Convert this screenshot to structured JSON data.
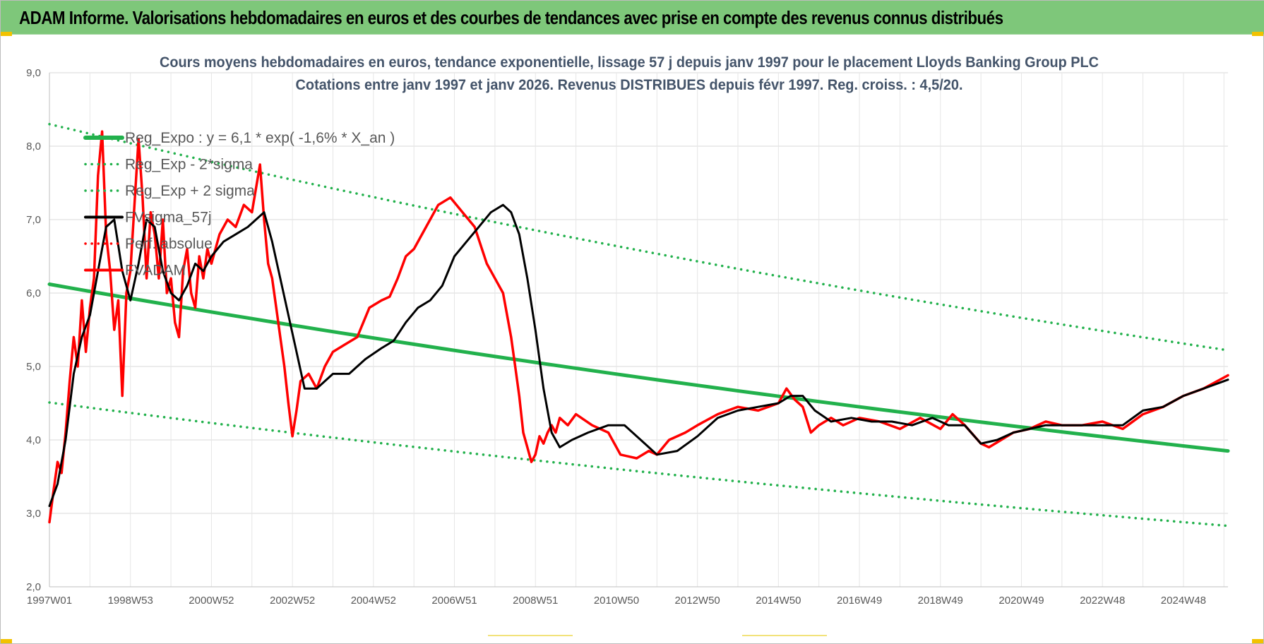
{
  "banner_title": "ADAM Informe. Valorisations hebdomadaires en euros et des courbes de tendances avec prise en compte des revenus connus distribués",
  "chart_data": {
    "type": "line",
    "title": "Cours moyens hebdomadaires en euros, tendance exponentielle, lissage 57 j depuis janv 1997 pour le placement Lloyds Banking Group PLC",
    "subtitle": "Cotations entre janv 1997 et janv 2026. Revenus DISTRIBUES depuis févr 1997. Reg. croiss. : 4,5/20.",
    "xlabel": "",
    "ylabel": "",
    "xlim": [
      1997.0,
      2026.1
    ],
    "ylim": [
      2.0,
      9.0
    ],
    "y_ticks": [
      "2,0",
      "3,0",
      "4,0",
      "5,0",
      "6,0",
      "7,0",
      "8,0",
      "9,0"
    ],
    "x_ticks": [
      {
        "label": "1997W01",
        "x": 1997.0
      },
      {
        "label": "1998W53",
        "x": 1999.0
      },
      {
        "label": "2000W52",
        "x": 2001.0
      },
      {
        "label": "2002W52",
        "x": 2003.0
      },
      {
        "label": "2004W52",
        "x": 2005.0
      },
      {
        "label": "2006W51",
        "x": 2007.0
      },
      {
        "label": "2008W51",
        "x": 2009.0
      },
      {
        "label": "2010W50",
        "x": 2011.0
      },
      {
        "label": "2012W50",
        "x": 2013.0
      },
      {
        "label": "2014W50",
        "x": 2015.0
      },
      {
        "label": "2016W49",
        "x": 2017.0
      },
      {
        "label": "2018W49",
        "x": 2019.0
      },
      {
        "label": "2020W49",
        "x": 2021.0
      },
      {
        "label": "2022W48",
        "x": 2023.0
      },
      {
        "label": "2024W48",
        "x": 2025.0
      }
    ],
    "grid": true,
    "legend_position": "top-left",
    "series": [
      {
        "name": "Reg_Expo : y = 6,1 * exp( -1,6% *  X_an )",
        "style": "solid",
        "color": "#22b14c",
        "x": [
          1997.0,
          2026.1
        ],
        "values": [
          6.12,
          3.85
        ]
      },
      {
        "name": "Reg_Exp - 2*sigma",
        "style": "dotted",
        "color": "#22b14c",
        "x": [
          1997.0,
          2026.1
        ],
        "values": [
          4.51,
          2.83
        ]
      },
      {
        "name": "Reg_Exp + 2 sigma",
        "style": "dotted",
        "color": "#22b14c",
        "x": [
          1997.0,
          2026.1
        ],
        "values": [
          8.3,
          5.22
        ]
      },
      {
        "name": "FVsigma_57j",
        "style": "solid",
        "color": "#000000",
        "x": [
          1997.0,
          1997.2,
          1997.4,
          1997.6,
          1997.8,
          1998.0,
          1998.2,
          1998.4,
          1998.6,
          1998.8,
          1999.0,
          1999.2,
          1999.4,
          1999.6,
          1999.8,
          2000.0,
          2000.2,
          2000.4,
          2000.6,
          2000.8,
          2001.0,
          2001.3,
          2001.6,
          2001.9,
          2002.1,
          2002.3,
          2002.5,
          2002.7,
          2002.9,
          2003.1,
          2003.3,
          2003.6,
          2004.0,
          2004.4,
          2004.8,
          2005.2,
          2005.5,
          2005.8,
          2006.1,
          2006.4,
          2006.7,
          2007.0,
          2007.3,
          2007.6,
          2007.9,
          2008.2,
          2008.4,
          2008.6,
          2008.8,
          2009.0,
          2009.2,
          2009.4,
          2009.6,
          2009.9,
          2010.3,
          2010.8,
          2011.2,
          2011.6,
          2012.0,
          2012.5,
          2013.0,
          2013.5,
          2014.0,
          2014.5,
          2015.0,
          2015.3,
          2015.6,
          2015.9,
          2016.3,
          2016.8,
          2017.3,
          2017.8,
          2018.3,
          2018.8,
          2019.2,
          2019.6,
          2020.0,
          2020.4,
          2020.8,
          2021.2,
          2021.6,
          2022.0,
          2022.5,
          2023.0,
          2023.5,
          2024.0,
          2024.5,
          2025.0,
          2025.5,
          2026.1
        ],
        "values": [
          3.1,
          3.4,
          4.0,
          4.9,
          5.4,
          5.7,
          6.3,
          6.9,
          7.0,
          6.3,
          5.9,
          6.4,
          7.0,
          6.9,
          6.3,
          6.0,
          5.9,
          6.1,
          6.4,
          6.3,
          6.5,
          6.7,
          6.8,
          6.9,
          7.0,
          7.1,
          6.7,
          6.2,
          5.7,
          5.2,
          4.7,
          4.7,
          4.9,
          4.9,
          5.1,
          5.25,
          5.35,
          5.6,
          5.8,
          5.9,
          6.1,
          6.5,
          6.7,
          6.9,
          7.1,
          7.2,
          7.1,
          6.8,
          6.2,
          5.5,
          4.7,
          4.1,
          3.9,
          4.0,
          4.1,
          4.2,
          4.2,
          4.0,
          3.8,
          3.85,
          4.05,
          4.3,
          4.4,
          4.45,
          4.5,
          4.6,
          4.6,
          4.4,
          4.25,
          4.3,
          4.25,
          4.25,
          4.2,
          4.3,
          4.2,
          4.2,
          3.95,
          4.0,
          4.1,
          4.15,
          4.2,
          4.2,
          4.2,
          4.2,
          4.2,
          4.4,
          4.45,
          4.6,
          4.7,
          4.82
        ]
      },
      {
        "name": "Perf. absolue",
        "style": "dotted",
        "color": "#ff0000",
        "x": [],
        "values": []
      },
      {
        "name": "FVADAM",
        "style": "solid",
        "color": "#ff0000",
        "x": [
          1997.0,
          1997.1,
          1997.2,
          1997.3,
          1997.4,
          1997.5,
          1997.6,
          1997.7,
          1997.8,
          1997.9,
          1998.0,
          1998.1,
          1998.2,
          1998.3,
          1998.4,
          1998.5,
          1998.6,
          1998.7,
          1998.8,
          1998.9,
          1999.0,
          1999.1,
          1999.2,
          1999.3,
          1999.4,
          1999.5,
          1999.6,
          1999.7,
          1999.8,
          1999.9,
          2000.0,
          2000.1,
          2000.2,
          2000.3,
          2000.4,
          2000.5,
          2000.6,
          2000.7,
          2000.8,
          2000.9,
          2001.0,
          2001.2,
          2001.4,
          2001.6,
          2001.8,
          2002.0,
          2002.2,
          2002.3,
          2002.4,
          2002.5,
          2002.6,
          2002.7,
          2002.8,
          2002.9,
          2003.0,
          2003.1,
          2003.2,
          2003.4,
          2003.6,
          2003.8,
          2004.0,
          2004.3,
          2004.6,
          2004.9,
          2005.2,
          2005.4,
          2005.6,
          2005.8,
          2006.0,
          2006.3,
          2006.6,
          2006.9,
          2007.2,
          2007.5,
          2007.8,
          2008.0,
          2008.2,
          2008.4,
          2008.5,
          2008.6,
          2008.7,
          2008.8,
          2008.9,
          2009.0,
          2009.1,
          2009.2,
          2009.3,
          2009.4,
          2009.5,
          2009.6,
          2009.8,
          2010.0,
          2010.4,
          2010.8,
          2011.1,
          2011.5,
          2011.8,
          2012.0,
          2012.3,
          2012.7,
          2013.0,
          2013.5,
          2014.0,
          2014.5,
          2015.0,
          2015.2,
          2015.4,
          2015.6,
          2015.8,
          2016.0,
          2016.3,
          2016.6,
          2017.0,
          2017.5,
          2018.0,
          2018.5,
          2019.0,
          2019.3,
          2019.6,
          2020.0,
          2020.2,
          2020.5,
          2020.8,
          2021.2,
          2021.6,
          2022.0,
          2022.5,
          2023.0,
          2023.5,
          2024.0,
          2024.5,
          2025.0,
          2025.5,
          2026.1
        ],
        "values": [
          2.88,
          3.3,
          3.7,
          3.55,
          4.1,
          4.8,
          5.4,
          5.0,
          5.9,
          5.2,
          5.8,
          6.2,
          7.6,
          8.2,
          6.8,
          6.3,
          5.5,
          5.9,
          4.6,
          6.0,
          6.3,
          7.2,
          8.1,
          7.3,
          6.2,
          7.1,
          6.8,
          6.2,
          7.0,
          6.0,
          6.2,
          5.6,
          5.4,
          6.3,
          6.6,
          6.0,
          5.8,
          6.5,
          6.2,
          6.6,
          6.4,
          6.8,
          7.0,
          6.9,
          7.2,
          7.1,
          7.75,
          7.0,
          6.4,
          6.2,
          5.8,
          5.4,
          5.0,
          4.5,
          4.05,
          4.4,
          4.8,
          4.9,
          4.7,
          5.0,
          5.2,
          5.3,
          5.4,
          5.8,
          5.9,
          5.95,
          6.2,
          6.5,
          6.6,
          6.9,
          7.2,
          7.3,
          7.1,
          6.9,
          6.4,
          6.2,
          6.0,
          5.4,
          5.0,
          4.6,
          4.1,
          3.9,
          3.7,
          3.8,
          4.05,
          3.95,
          4.1,
          4.2,
          4.1,
          4.3,
          4.2,
          4.35,
          4.2,
          4.1,
          3.8,
          3.75,
          3.85,
          3.8,
          4.0,
          4.1,
          4.2,
          4.35,
          4.45,
          4.4,
          4.5,
          4.7,
          4.55,
          4.45,
          4.1,
          4.2,
          4.3,
          4.2,
          4.3,
          4.25,
          4.15,
          4.3,
          4.15,
          4.35,
          4.2,
          3.95,
          3.9,
          4.0,
          4.1,
          4.15,
          4.25,
          4.2,
          4.2,
          4.25,
          4.15,
          4.35,
          4.45,
          4.6,
          4.7,
          4.88
        ]
      }
    ]
  }
}
